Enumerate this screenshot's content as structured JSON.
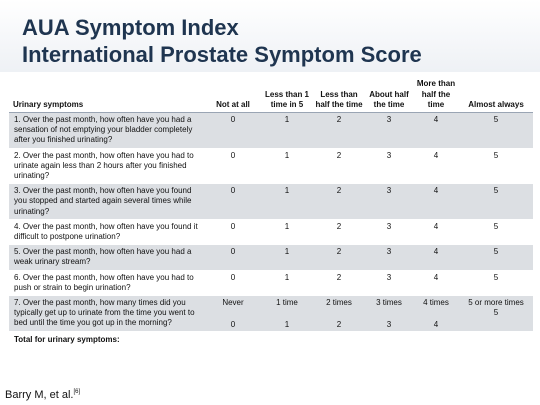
{
  "title_line1": "AUA Symptom Index",
  "title_line2": "International Prostate Symptom Score",
  "columns": [
    "Urinary symptoms",
    "Not at all",
    "Less than 1 time in 5",
    "Less than half the time",
    "About half the time",
    "More than half the time",
    "Almost always"
  ],
  "rows": [
    {
      "question": "1. Over the past month, how often have you had a sensation of not emptying your bladder completely after you finished urinating?",
      "values": [
        "0",
        "1",
        "2",
        "3",
        "4",
        "5"
      ]
    },
    {
      "question": "2. Over the past month, how often have you had to urinate again less than 2 hours after you finished urinating?",
      "values": [
        "0",
        "1",
        "2",
        "3",
        "4",
        "5"
      ]
    },
    {
      "question": "3. Over the past month, how often have you found you stopped and started again several times while urinating?",
      "values": [
        "0",
        "1",
        "2",
        "3",
        "4",
        "5"
      ]
    },
    {
      "question": "4. Over the past month, how often have you found it difficult to postpone urination?",
      "values": [
        "0",
        "1",
        "2",
        "3",
        "4",
        "5"
      ]
    },
    {
      "question": "5. Over the past month, how often have you had a weak urinary stream?",
      "values": [
        "0",
        "1",
        "2",
        "3",
        "4",
        "5"
      ]
    },
    {
      "question": "6. Over the past month, how often have you had to push or strain to begin urination?",
      "values": [
        "0",
        "1",
        "2",
        "3",
        "4",
        "5"
      ]
    },
    {
      "question": "7. Over the past month, how many times did you typically get up to urinate from the time you went to bed until the time you got up in the morning?",
      "labels": [
        "Never",
        "1 time",
        "2 times",
        "3 times",
        "4 times",
        "5 or more times"
      ],
      "values": [
        "0",
        "1",
        "2",
        "3",
        "4",
        "5"
      ]
    }
  ],
  "total_label": "Total for urinary symptoms:",
  "citation": "Barry M, et al.",
  "citation_ref": "[6]"
}
